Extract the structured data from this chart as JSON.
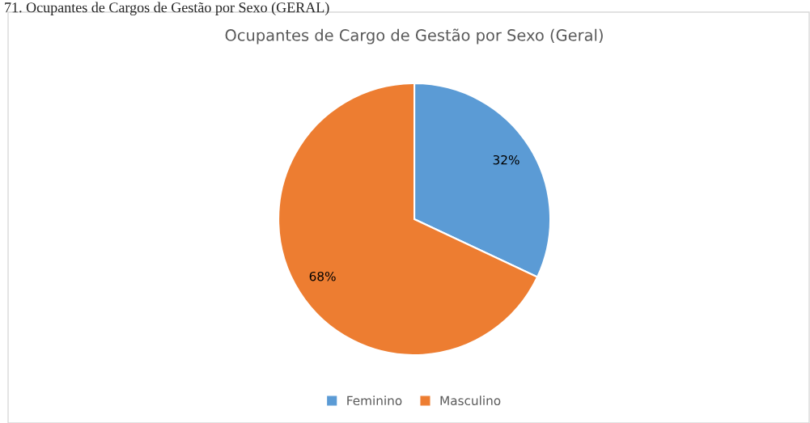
{
  "chart_data": {
    "type": "pie",
    "title": "Ocupantes de Cargo de Gestão por Sexo (Geral)",
    "annotations": [
      "71. Ocupantes de Cargos de Gestão por Sexo (GERAL)"
    ],
    "categories": [
      "Feminino",
      "Masculino"
    ],
    "values": [
      32,
      68
    ],
    "colors": [
      "#5b9bd5",
      "#ed7d31"
    ],
    "value_labels": [
      "32%",
      "68%"
    ],
    "legend": "bottom"
  }
}
